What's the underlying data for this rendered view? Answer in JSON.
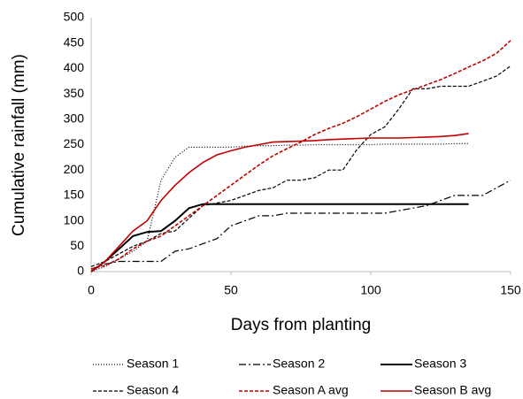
{
  "chart_data": {
    "type": "line",
    "y_label": "Cumulative rainfall (mm)",
    "x_label": "Days from planting",
    "xlim": [
      0,
      150
    ],
    "xticks": [
      0,
      50,
      100,
      150
    ],
    "ylim": [
      0,
      500
    ],
    "yticks": [
      0,
      50,
      100,
      150,
      200,
      250,
      300,
      350,
      400,
      450,
      500
    ],
    "grid": false,
    "legend": "bottom",
    "x": [
      0,
      5,
      10,
      15,
      20,
      25,
      30,
      35,
      40,
      45,
      50,
      55,
      60,
      65,
      70,
      75,
      80,
      85,
      90,
      95,
      100,
      105,
      110,
      115,
      120,
      125,
      130,
      135,
      140,
      145,
      150
    ],
    "series": [
      {
        "name": "Season 1",
        "color": "#000000",
        "dash": "1 2",
        "width": 1.2,
        "values": [
          0,
          10,
          25,
          40,
          60,
          180,
          225,
          245,
          245,
          245,
          245,
          247,
          248,
          248,
          249,
          249,
          250,
          250,
          250,
          250,
          250,
          251,
          251,
          251,
          251,
          251,
          252,
          252,
          null,
          null,
          null
        ]
      },
      {
        "name": "Season 2",
        "color": "#000000",
        "dash": "8 3 2 3",
        "width": 1.2,
        "values": [
          5,
          15,
          20,
          20,
          20,
          20,
          40,
          45,
          55,
          65,
          90,
          100,
          110,
          110,
          115,
          115,
          115,
          115,
          115,
          115,
          115,
          115,
          120,
          125,
          130,
          140,
          150,
          150,
          150,
          165,
          180
        ]
      },
      {
        "name": "Season 3",
        "color": "#000000",
        "dash": "none",
        "width": 2,
        "values": [
          0,
          20,
          45,
          70,
          78,
          80,
          100,
          125,
          133,
          133,
          133,
          133,
          133,
          133,
          133,
          133,
          133,
          133,
          133,
          133,
          133,
          133,
          133,
          133,
          133,
          133,
          133,
          133,
          null,
          null,
          null
        ]
      },
      {
        "name": "Season 4",
        "color": "#000000",
        "dash": "4 2",
        "width": 1.2,
        "values": [
          10,
          20,
          35,
          50,
          60,
          75,
          80,
          105,
          130,
          135,
          140,
          150,
          160,
          165,
          180,
          180,
          185,
          200,
          200,
          240,
          270,
          285,
          320,
          360,
          360,
          365,
          365,
          365,
          375,
          385,
          405
        ]
      },
      {
        "name": "Season A avg",
        "color": "#c00000",
        "dash": "4 2",
        "width": 1.6,
        "values": [
          5,
          12,
          25,
          45,
          60,
          70,
          90,
          110,
          130,
          150,
          170,
          190,
          210,
          228,
          242,
          255,
          270,
          282,
          292,
          305,
          320,
          335,
          348,
          358,
          368,
          378,
          390,
          403,
          415,
          430,
          455
        ]
      },
      {
        "name": "Season B avg",
        "color": "#c00000",
        "dash": "none",
        "width": 1.6,
        "values": [
          0,
          20,
          50,
          80,
          100,
          140,
          170,
          195,
          215,
          230,
          238,
          245,
          250,
          255,
          256,
          257,
          258,
          260,
          261,
          262,
          263,
          263,
          263,
          264,
          265,
          266,
          268,
          272,
          null,
          null,
          null
        ]
      }
    ]
  }
}
